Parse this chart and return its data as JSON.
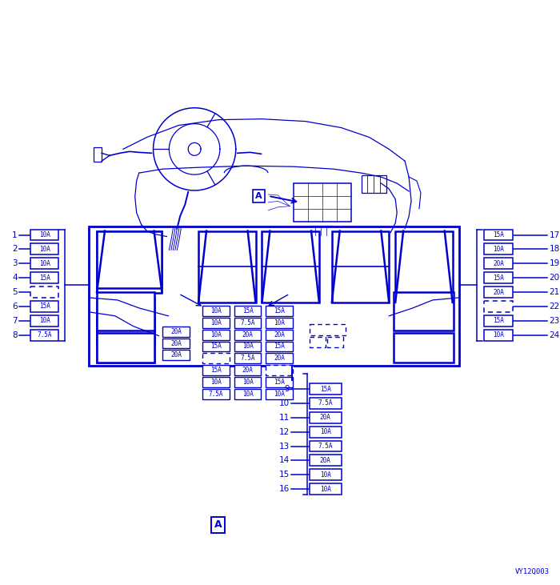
{
  "diagram_color": "#0000CC",
  "bg_color": "#FFFFFF",
  "left_fuses": [
    {
      "num": 1,
      "label": "10A"
    },
    {
      "num": 2,
      "label": "10A"
    },
    {
      "num": 3,
      "label": "10A"
    },
    {
      "num": 4,
      "label": "15A"
    },
    {
      "num": 5,
      "label": null
    },
    {
      "num": 6,
      "label": "15A"
    },
    {
      "num": 7,
      "label": "10A"
    },
    {
      "num": 8,
      "label": "7.5A"
    }
  ],
  "right_fuses": [
    {
      "num": 17,
      "label": "15A"
    },
    {
      "num": 18,
      "label": "10A"
    },
    {
      "num": 19,
      "label": "20A"
    },
    {
      "num": 20,
      "label": "15A"
    },
    {
      "num": 21,
      "label": "20A"
    },
    {
      "num": 22,
      "label": null
    },
    {
      "num": 23,
      "label": "15A"
    },
    {
      "num": 24,
      "label": "10A"
    }
  ],
  "bottom_fuses": [
    {
      "num": 9,
      "label": "15A"
    },
    {
      "num": 10,
      "label": "7.5A"
    },
    {
      "num": 11,
      "label": "20A"
    },
    {
      "num": 12,
      "label": "10A"
    },
    {
      "num": 13,
      "label": "7.5A"
    },
    {
      "num": 14,
      "label": "20A"
    },
    {
      "num": 15,
      "label": "10A"
    },
    {
      "num": 16,
      "label": "10A"
    }
  ],
  "center_col_a": [
    "10A",
    "10A",
    "10A",
    "15A",
    null,
    "15A",
    "10A",
    "7.5A"
  ],
  "center_col_b": [
    "15A",
    "7.5A",
    "20A",
    "10A",
    "7.5A",
    "20A",
    "10A",
    "10A"
  ],
  "center_col_c": [
    "15A",
    "10A",
    "20A",
    "15A",
    "20A",
    null,
    "15A",
    "10A"
  ],
  "left_stack": [
    "20A",
    "20A",
    "20A"
  ],
  "watermark": "VY12Q003"
}
